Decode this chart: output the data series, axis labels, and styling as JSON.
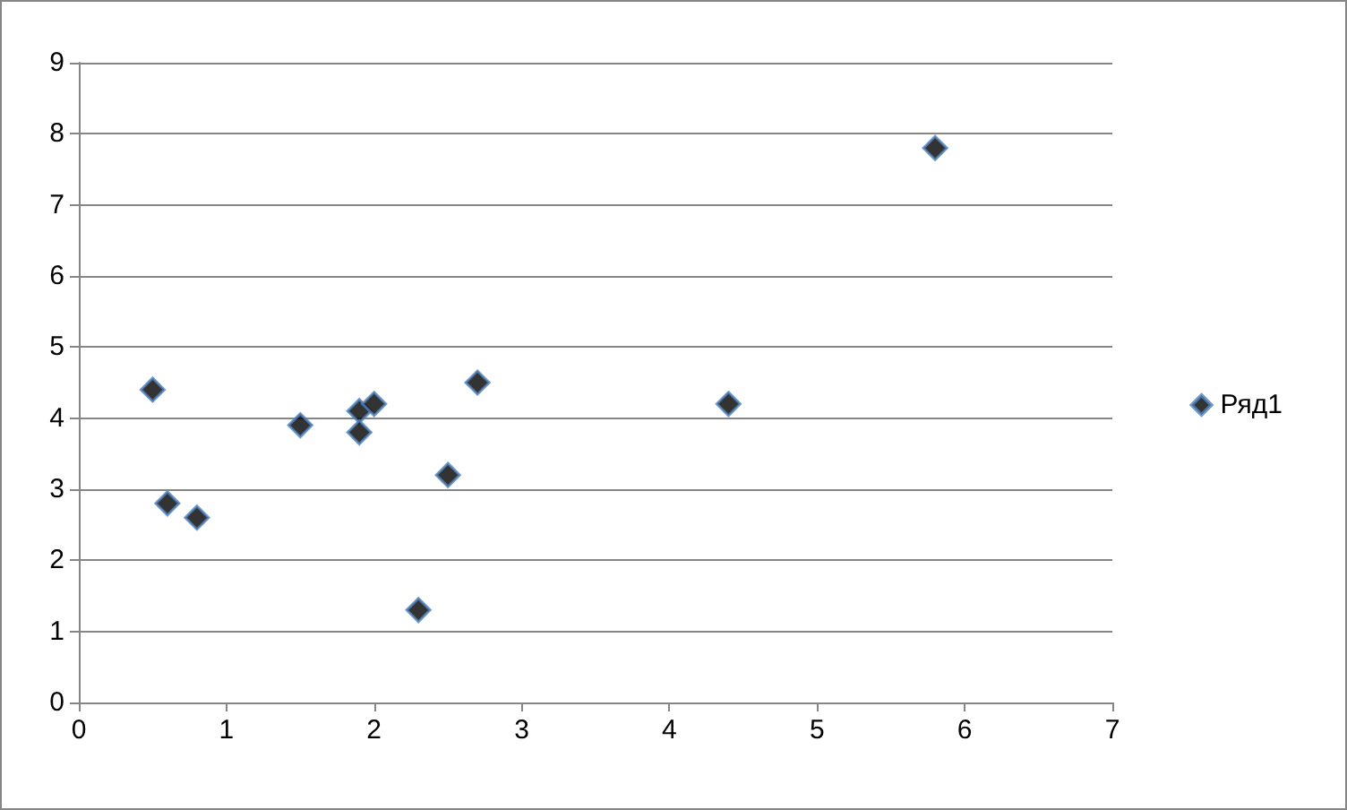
{
  "chart_data": {
    "type": "scatter",
    "x": [
      0.5,
      0.6,
      0.8,
      1.5,
      1.9,
      1.9,
      2.0,
      2.3,
      2.5,
      2.7,
      4.4,
      5.8
    ],
    "series": [
      {
        "name": "Ряд1",
        "color": "#000000",
        "values": [
          4.4,
          2.8,
          2.6,
          3.9,
          4.1,
          3.8,
          4.2,
          1.3,
          3.2,
          4.5,
          4.2,
          7.8
        ]
      }
    ],
    "xlim": [
      0,
      7
    ],
    "xticks": [
      0,
      1,
      2,
      3,
      4,
      5,
      6,
      7
    ],
    "ylim": [
      0,
      9
    ],
    "yticks": [
      0,
      1,
      2,
      3,
      4,
      5,
      6,
      7,
      8,
      9
    ],
    "grid": "y",
    "legend": "right",
    "marker": "diamond"
  }
}
